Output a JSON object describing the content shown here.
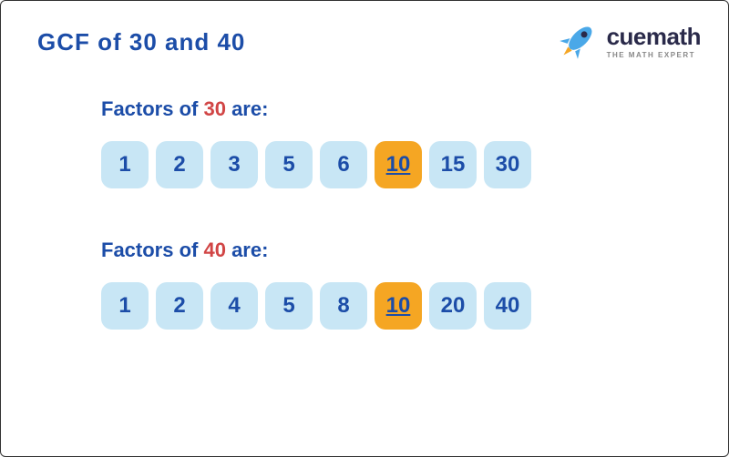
{
  "title": {
    "prefix": "GCF of ",
    "num1": "30",
    "mid": " and ",
    "num2": "40",
    "color_prefix": "#1c4da8",
    "color_nums": "#1c4da8"
  },
  "logo": {
    "brand": "cuemath",
    "tagline": "THE MATH EXPERT",
    "rocket_body": "#4aa8e8",
    "rocket_flame": "#f5a623"
  },
  "colors": {
    "label_text": "#1c4da8",
    "highlight_num": "#d14545",
    "factor_bg": "#c8e6f5",
    "factor_text": "#1c4da8",
    "gcf_bg": "#f5a623",
    "gcf_text": "#1c4da8"
  },
  "typography": {
    "title_fontsize": 26,
    "label_fontsize": 22,
    "factor_fontsize": 24
  },
  "sections": [
    {
      "label_prefix": "Factors of ",
      "label_num": "30",
      "label_suffix": " are:",
      "factors": [
        {
          "value": "1",
          "highlighted": false
        },
        {
          "value": "2",
          "highlighted": false
        },
        {
          "value": "3",
          "highlighted": false
        },
        {
          "value": "5",
          "highlighted": false
        },
        {
          "value": "6",
          "highlighted": false
        },
        {
          "value": "10",
          "highlighted": true
        },
        {
          "value": "15",
          "highlighted": false
        },
        {
          "value": "30",
          "highlighted": false
        }
      ]
    },
    {
      "label_prefix": "Factors of ",
      "label_num": "40",
      "label_suffix": " are:",
      "factors": [
        {
          "value": "1",
          "highlighted": false
        },
        {
          "value": "2",
          "highlighted": false
        },
        {
          "value": "4",
          "highlighted": false
        },
        {
          "value": "5",
          "highlighted": false
        },
        {
          "value": "8",
          "highlighted": false
        },
        {
          "value": "10",
          "highlighted": true
        },
        {
          "value": "20",
          "highlighted": false
        },
        {
          "value": "40",
          "highlighted": false
        }
      ]
    }
  ]
}
